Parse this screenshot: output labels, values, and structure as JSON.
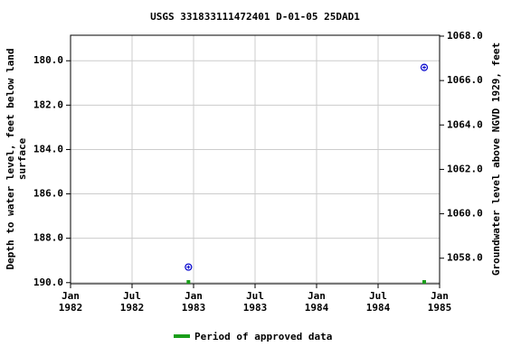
{
  "chart_data": {
    "type": "scatter",
    "title": "USGS 331833111472401 D-01-05 25DAD1",
    "y_label": [
      "Depth to water level, feet below land",
      "surface"
    ],
    "y2_label": "Groundwater level above NGVD 1929, feet",
    "xlim": [
      "1982-01",
      "1985-01"
    ],
    "xticks": [
      {
        "value": "1982-01",
        "label": [
          "Jan",
          "1982"
        ]
      },
      {
        "value": "1982-07",
        "label": [
          "Jul",
          "1982"
        ]
      },
      {
        "value": "1983-01",
        "label": [
          "Jan",
          "1983"
        ]
      },
      {
        "value": "1983-07",
        "label": [
          "Jul",
          "1983"
        ]
      },
      {
        "value": "1984-01",
        "label": [
          "Jan",
          "1984"
        ]
      },
      {
        "value": "1984-07",
        "label": [
          "Jul",
          "1984"
        ]
      },
      {
        "value": "1985-01",
        "label": [
          "Jan",
          "1985"
        ]
      }
    ],
    "ylim": [
      190.05,
      178.85
    ],
    "yticks": [
      {
        "value": 180,
        "label": "180.0"
      },
      {
        "value": 182,
        "label": "182.0"
      },
      {
        "value": 184,
        "label": "184.0"
      },
      {
        "value": 186,
        "label": "186.0"
      },
      {
        "value": 188,
        "label": "188.0"
      },
      {
        "value": 190,
        "label": "190.0"
      }
    ],
    "y2lim": [
      1056.85,
      1068.04
    ],
    "y2ticks": [
      {
        "value": 1058,
        "label": "1058.0"
      },
      {
        "value": 1060,
        "label": "1060.0"
      },
      {
        "value": 1062,
        "label": "1062.0"
      },
      {
        "value": 1064,
        "label": "1064.0"
      },
      {
        "value": 1066,
        "label": "1066.0"
      },
      {
        "value": 1068,
        "label": "1068.0"
      }
    ],
    "grid": true,
    "series": [
      {
        "color": "#0000cc",
        "x": [
          "1982-12",
          "1984-11"
        ],
        "values": [
          189.3,
          180.3
        ]
      }
    ],
    "approved": {
      "name": "Period of approved data",
      "color": "#1a9e1a",
      "x": [
        "1982-12",
        "1984-11"
      ]
    }
  }
}
